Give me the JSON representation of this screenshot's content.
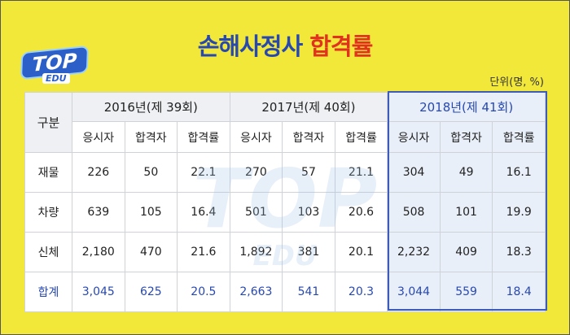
{
  "logo": {
    "top": "TOP",
    "edu": "EDU"
  },
  "title": {
    "main": "손해사정사",
    "highlight": "합격률"
  },
  "unit": "단위(명, %)",
  "table": {
    "corner": "구분",
    "years": [
      "2016년(제 39회)",
      "2017년(제 40회)",
      "2018년(제 41회)"
    ],
    "subheaders": [
      "응시자",
      "합격자",
      "합격률",
      "응시자",
      "합격자",
      "합격률",
      "응시자",
      "합격자",
      "합격률"
    ],
    "rows": [
      {
        "label": "재물",
        "cells": [
          "226",
          "50",
          "22.1",
          "270",
          "57",
          "21.1",
          "304",
          "49",
          "16.1"
        ]
      },
      {
        "label": "차량",
        "cells": [
          "639",
          "105",
          "16.4",
          "501",
          "103",
          "20.6",
          "508",
          "101",
          "19.9"
        ]
      },
      {
        "label": "신체",
        "cells": [
          "2,180",
          "470",
          "21.6",
          "1,892",
          "381",
          "20.1",
          "2,232",
          "409",
          "18.3"
        ]
      },
      {
        "label": "합계",
        "cells": [
          "3,045",
          "625",
          "20.5",
          "2,663",
          "541",
          "20.3",
          "3,044",
          "559",
          "18.4"
        ]
      }
    ]
  }
}
